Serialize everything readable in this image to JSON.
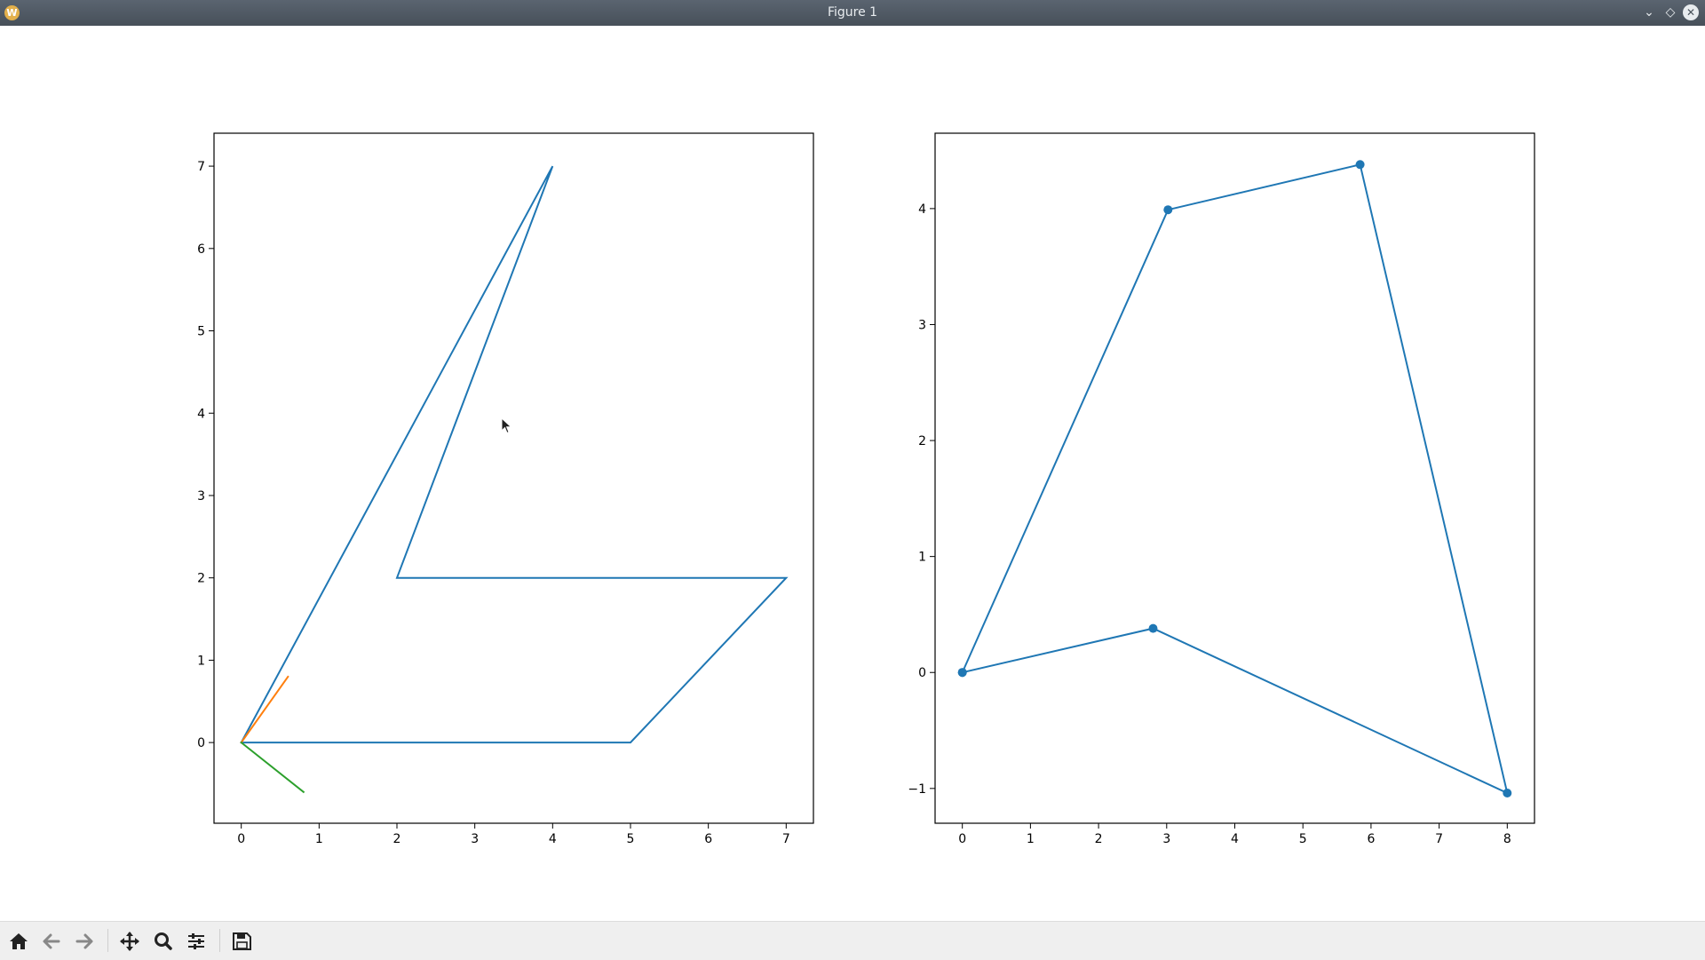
{
  "window": {
    "title": "Figure 1",
    "app_icon": "W"
  },
  "toolbar": {
    "buttons": [
      {
        "name": "home-button",
        "icon": "home-icon"
      },
      {
        "name": "back-button",
        "icon": "arrow-left-icon"
      },
      {
        "name": "forward-button",
        "icon": "arrow-right-icon"
      },
      {
        "name": "pan-button",
        "icon": "move-icon"
      },
      {
        "name": "zoom-button",
        "icon": "magnifier-icon"
      },
      {
        "name": "configure-subplots-button",
        "icon": "sliders-icon"
      },
      {
        "name": "save-button",
        "icon": "floppy-disk-icon"
      }
    ]
  },
  "colors": {
    "c0": "#1f77b4",
    "c1": "#ff7f0e",
    "c2": "#2ca02c"
  },
  "chart_data": [
    {
      "type": "line",
      "xlim": [
        -0.35,
        7.35
      ],
      "ylim": [
        -0.98,
        7.4
      ],
      "xticks": [
        0,
        1,
        2,
        3,
        4,
        5,
        6,
        7
      ],
      "yticks": [
        0,
        1,
        2,
        3,
        4,
        5,
        6,
        7
      ],
      "grid": false,
      "series": [
        {
          "color": "#1f77b4",
          "points": [
            [
              0,
              0
            ],
            [
              5,
              0
            ],
            [
              7,
              2
            ],
            [
              2,
              2
            ],
            [
              4,
              7
            ],
            [
              0,
              0
            ]
          ]
        },
        {
          "color": "#ff7f0e",
          "points": [
            [
              0,
              0
            ],
            [
              0.6,
              0.8
            ]
          ]
        },
        {
          "color": "#2ca02c",
          "points": [
            [
              0,
              0
            ],
            [
              0.8,
              -0.6
            ]
          ]
        }
      ]
    },
    {
      "type": "line",
      "xlim": [
        -0.4,
        8.4
      ],
      "ylim": [
        -1.3,
        4.65
      ],
      "xticks": [
        0,
        1,
        2,
        3,
        4,
        5,
        6,
        7,
        8
      ],
      "yticks": [
        -1,
        0,
        1,
        2,
        3,
        4
      ],
      "yticklabels": [
        "−1",
        "0",
        "1",
        "2",
        "3",
        "4"
      ],
      "grid": false,
      "series": [
        {
          "color": "#1f77b4",
          "markers": true,
          "points": [
            [
              0,
              0
            ],
            [
              2.8,
              0.38
            ],
            [
              8,
              -1.04
            ],
            [
              5.84,
              4.38
            ],
            [
              3.02,
              3.99
            ],
            [
              0,
              0
            ]
          ]
        }
      ]
    }
  ]
}
